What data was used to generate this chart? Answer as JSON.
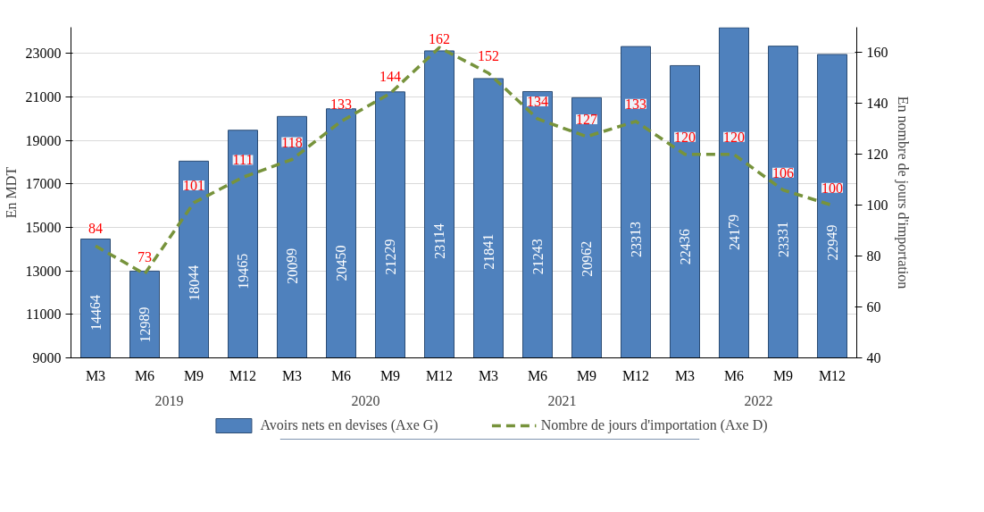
{
  "chart_data": {
    "type": "bar",
    "categories": [
      "M3",
      "M6",
      "M9",
      "M12",
      "M3",
      "M6",
      "M9",
      "M12",
      "M3",
      "M6",
      "M9",
      "M12",
      "M3",
      "M6",
      "M9",
      "M12"
    ],
    "annotations": [
      "2019",
      "2020",
      "2021",
      "2022"
    ],
    "series": [
      {
        "name": "Avoirs nets en devises (Axe G)",
        "color": "#4f81bd",
        "values": [
          14464,
          12989,
          18044,
          19465,
          20099,
          20450,
          21229,
          23114,
          21841,
          21243,
          20962,
          23313,
          22436,
          24179,
          23331,
          22949
        ]
      },
      {
        "name": "Nombre de jours d'importation (Axe D)",
        "type": "line",
        "axis": "y2",
        "color": "#77933c",
        "line_style": "dashed",
        "values": [
          84,
          73,
          101,
          111,
          118,
          133,
          144,
          162,
          152,
          134,
          127,
          133,
          120,
          120,
          106,
          100
        ]
      }
    ],
    "data_labels": true,
    "ylabel": "En MDT",
    "y2label": "En nombre de jours d'importation",
    "ylim": [
      9000,
      24200
    ],
    "yticks": [
      9000,
      11000,
      13000,
      15000,
      17000,
      19000,
      21000,
      23000
    ],
    "y2lim": [
      40,
      170
    ],
    "y2ticks": [
      40,
      60,
      80,
      100,
      120,
      140,
      160
    ],
    "grid": "y",
    "legend": "bottom",
    "marker": "none"
  }
}
